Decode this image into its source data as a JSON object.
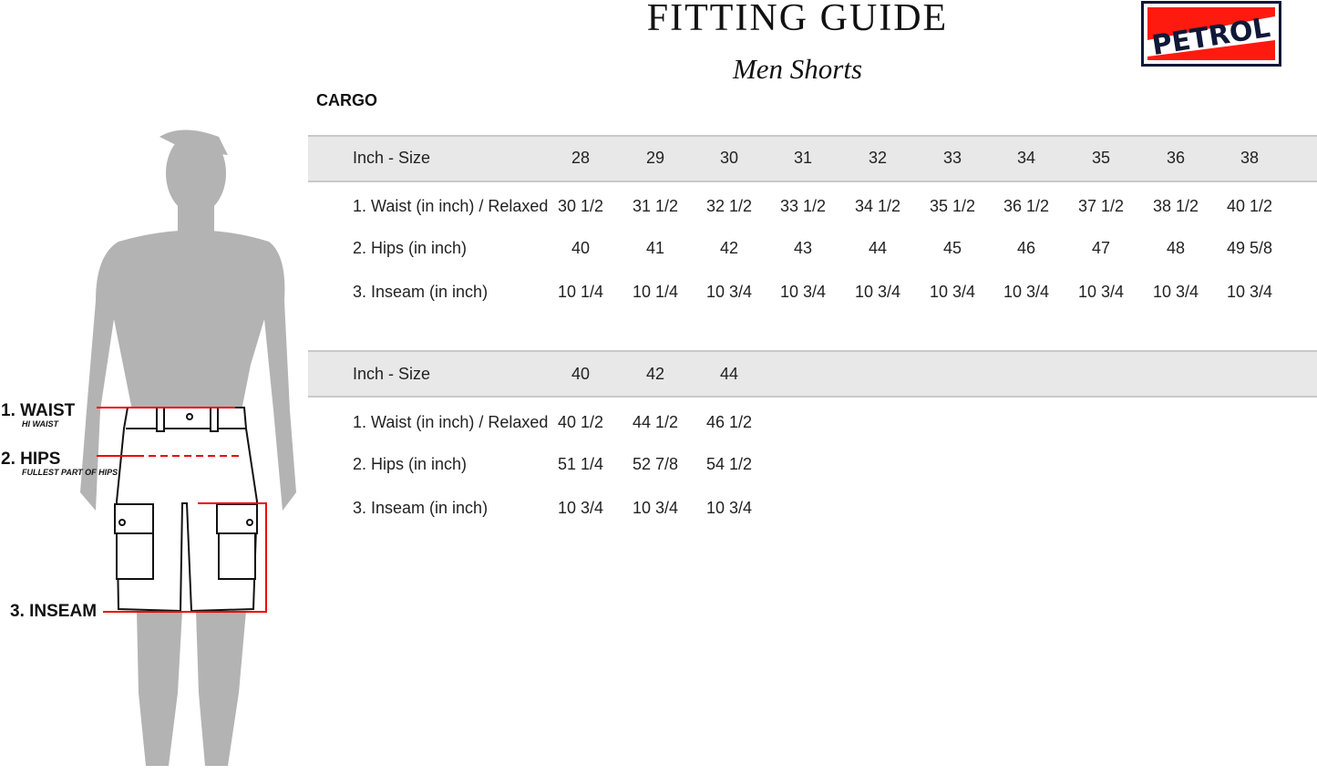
{
  "header": {
    "title": "FITTING GUIDE",
    "subtitle": "Men Shorts",
    "section": "CARGO"
  },
  "logo": {
    "text": "PETROL",
    "colors": {
      "red": "#ff1a10",
      "navy": "#101838"
    }
  },
  "measure_labels": [
    {
      "label": "1. WAIST",
      "sub": "HI WAIST"
    },
    {
      "label": "2. HIPS",
      "sub": "FULLEST PART OF HIPS"
    },
    {
      "label": "3. INSEAM",
      "sub": ""
    }
  ],
  "tables": [
    {
      "header": "Inch - Size",
      "sizes": [
        "28",
        "29",
        "30",
        "31",
        "32",
        "33",
        "34",
        "35",
        "36",
        "38"
      ],
      "rows": [
        {
          "label": "1. Waist (in inch) / Relaxed",
          "values": [
            "30 1/2",
            "31 1/2",
            "32 1/2",
            "33 1/2",
            "34 1/2",
            "35 1/2",
            "36 1/2",
            "37 1/2",
            "38 1/2",
            "40 1/2"
          ]
        },
        {
          "label": "2. Hips (in inch)",
          "values": [
            "40",
            "41",
            "42",
            "43",
            "44",
            "45",
            "46",
            "47",
            "48",
            "49 5/8"
          ]
        },
        {
          "label": "3. Inseam (in inch)",
          "values": [
            "10 1/4",
            "10 1/4",
            "10 3/4",
            "10 3/4",
            "10 3/4",
            "10 3/4",
            "10 3/4",
            "10 3/4",
            "10 3/4",
            "10 3/4"
          ]
        }
      ]
    },
    {
      "header": "Inch - Size",
      "sizes": [
        "40",
        "42",
        "44"
      ],
      "rows": [
        {
          "label": "1. Waist (in inch) / Relaxed",
          "values": [
            "40 1/2",
            "44 1/2",
            "46 1/2"
          ]
        },
        {
          "label": "2. Hips (in inch)",
          "values": [
            "51 1/4",
            "52 7/8",
            "54 1/2"
          ]
        },
        {
          "label": "3. Inseam (in inch)",
          "values": [
            "10 3/4",
            "10 3/4",
            "10 3/4"
          ]
        }
      ]
    }
  ]
}
